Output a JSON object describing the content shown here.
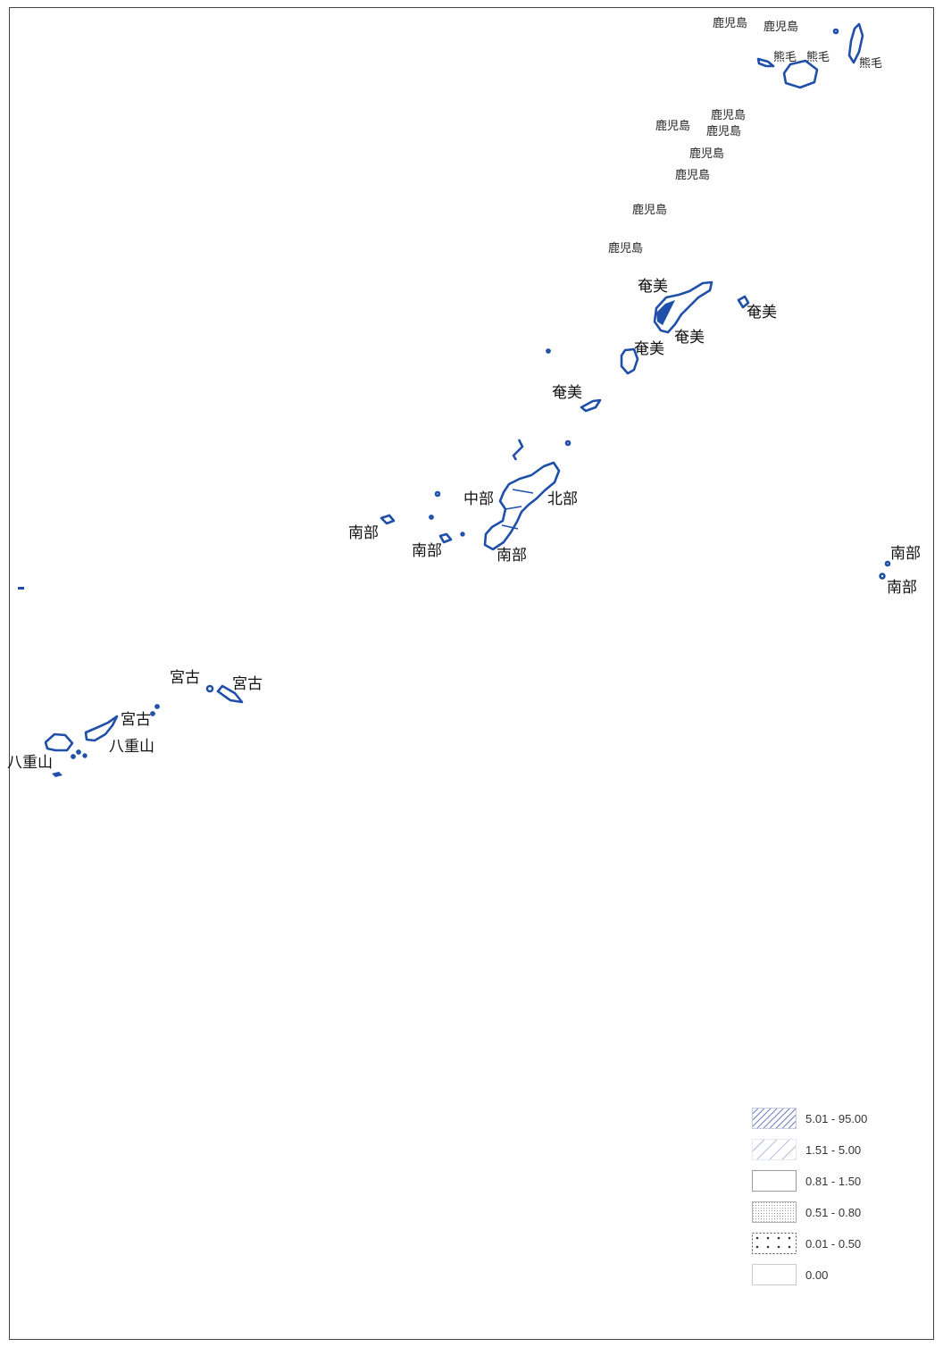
{
  "labels": {
    "kagoshima_1": "鹿児島",
    "kagoshima_2": "鹿児島",
    "kumage_1": "熊毛",
    "kumage_2": "熊毛",
    "kumage_3": "熊毛",
    "kagoshima_3": "鹿児島",
    "kagoshima_4": "鹿児島",
    "kagoshima_5": "鹿児島",
    "kagoshima_6": "鹿児島",
    "kagoshima_7": "鹿児島",
    "kagoshima_8": "鹿児島",
    "kagoshima_9": "鹿児島",
    "amami_1": "奄美",
    "amami_2": "奄美",
    "amami_3": "奄美",
    "amami_4": "奄美",
    "amami_5": "奄美",
    "chubu": "中部",
    "hokubu": "北部",
    "nanbu_1": "南部",
    "nanbu_2": "南部",
    "nanbu_3": "南部",
    "nanbu_4": "南部",
    "nanbu_5": "南部",
    "miyako_1": "宮古",
    "miyako_2": "宮古",
    "miyako_3": "宮古",
    "yaeyama_1": "八重山",
    "yaeyama_2": "八重山"
  },
  "legend": {
    "items": [
      {
        "range": "5.01 - 95.00",
        "pattern": "dense-hatch"
      },
      {
        "range": "1.51 - 5.00",
        "pattern": "sparse-hatch"
      },
      {
        "range": "0.81 - 1.50",
        "pattern": "empty"
      },
      {
        "range": "0.51 - 0.80",
        "pattern": "fine-dots"
      },
      {
        "range": "0.01 - 0.50",
        "pattern": "coarse-dots"
      },
      {
        "range": "0.00",
        "pattern": "blank"
      }
    ]
  },
  "colors": {
    "outline": "#1f4fa8",
    "hatch": "#6a78b8",
    "frame": "#444444"
  }
}
